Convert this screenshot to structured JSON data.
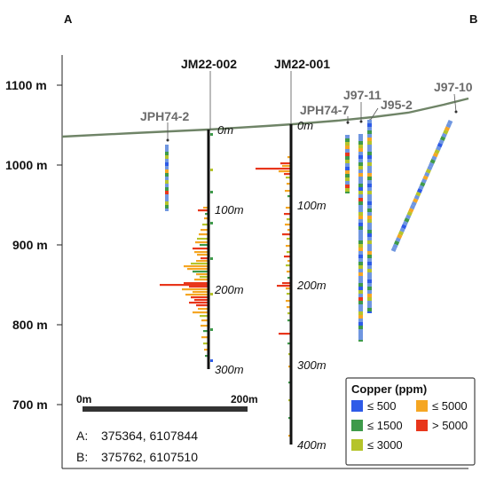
{
  "section": {
    "corner_left": "A",
    "corner_right": "B",
    "elevation_ticks": [
      {
        "value": 1100,
        "label": "1100 m"
      },
      {
        "value": 1000,
        "label": "1000 m"
      },
      {
        "value": 900,
        "label": "900 m"
      },
      {
        "value": 800,
        "label": "800 m"
      },
      {
        "value": 700,
        "label": "700 m"
      }
    ],
    "scale_bar": {
      "start_label": "0m",
      "end_label": "200m",
      "length_m": 200
    },
    "coordinates": [
      {
        "label": "A:",
        "value": "375364, 6107844"
      },
      {
        "label": "B:",
        "value": "375762, 6107510"
      }
    ]
  },
  "drillholes": [
    {
      "name": "JM22-002",
      "style": "major",
      "depth_labels": [
        "0m",
        "100m",
        "200m",
        "300m"
      ],
      "total_depth_m": 300
    },
    {
      "name": "JM22-001",
      "style": "major",
      "depth_labels": [
        "0m",
        "100m",
        "200m",
        "300m",
        "400m"
      ],
      "total_depth_m": 400
    },
    {
      "name": "JPH74-2",
      "style": "historic"
    },
    {
      "name": "JPH74-7",
      "style": "historic"
    },
    {
      "name": "J97-11",
      "style": "historic"
    },
    {
      "name": "J95-2",
      "style": "historic"
    },
    {
      "name": "J97-10",
      "style": "historic"
    }
  ],
  "legend": {
    "title": "Copper (ppm)",
    "items": [
      {
        "label": "≤ 500",
        "color": "#2e5be8"
      },
      {
        "label": "≤ 5000",
        "color": "#f5a623"
      },
      {
        "label": "≤ 1500",
        "color": "#3e9a4a"
      },
      {
        "label": "> 5000",
        "color": "#e8361b"
      },
      {
        "label": "≤ 3000",
        "color": "#b5c42a"
      }
    ]
  },
  "colors": {
    "topography": "#6f8467",
    "trace": "#111111",
    "low": "#6f96e0"
  }
}
